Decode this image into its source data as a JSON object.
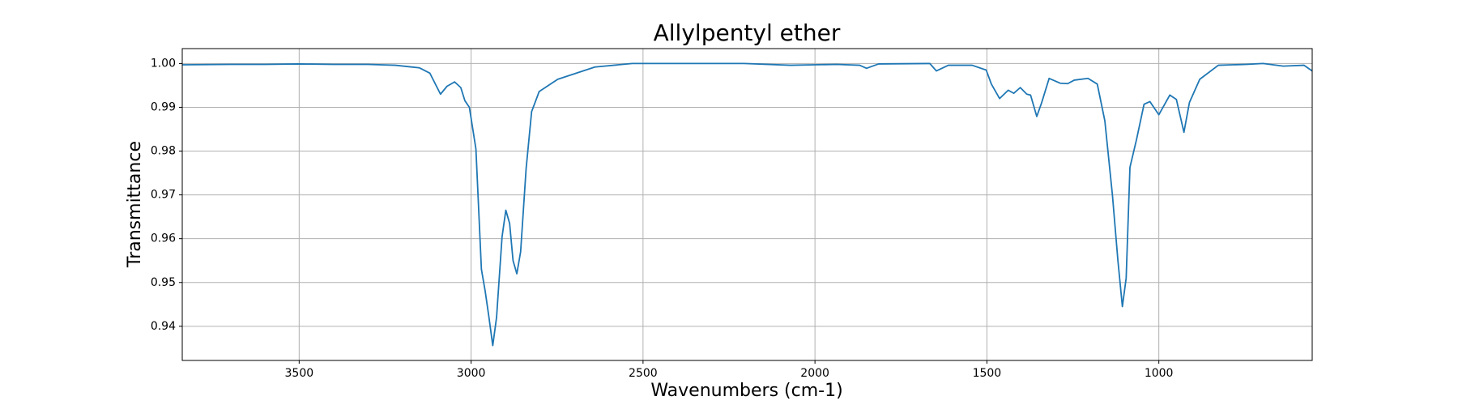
{
  "chart_data": {
    "type": "line",
    "title": "Allylpentyl ether",
    "xlabel": "Wavenumbers (cm-1)",
    "ylabel": "Transmittance",
    "x": [
      3840,
      3700,
      3600,
      3500,
      3400,
      3300,
      3220,
      3150,
      3120,
      3089,
      3070,
      3048,
      3030,
      3018,
      3005,
      2986,
      2970,
      2959,
      2948,
      2937,
      2926,
      2910,
      2899,
      2888,
      2878,
      2867,
      2856,
      2840,
      2824,
      2802,
      2748,
      2640,
      2531,
      2400,
      2207,
      2071,
      1936,
      1870,
      1850,
      1815,
      1666,
      1647,
      1612,
      1543,
      1502,
      1487,
      1463,
      1438,
      1422,
      1403,
      1384,
      1373,
      1355,
      1341,
      1319,
      1287,
      1265,
      1246,
      1206,
      1179,
      1157,
      1135,
      1119,
      1106,
      1095,
      1084,
      1065,
      1043,
      1026,
      1000,
      968,
      949,
      927,
      911,
      881,
      827,
      746,
      697,
      638,
      578,
      554
    ],
    "series": [
      {
        "name": "Allylpentyl ether",
        "color": "#1f77b4",
        "values": [
          0.9997,
          0.9998,
          0.9998,
          0.9999,
          0.9998,
          0.9998,
          0.9996,
          0.999,
          0.9978,
          0.993,
          0.9948,
          0.9958,
          0.9945,
          0.9915,
          0.99,
          0.9805,
          0.953,
          0.948,
          0.942,
          0.9356,
          0.942,
          0.9604,
          0.9665,
          0.9635,
          0.955,
          0.952,
          0.957,
          0.976,
          0.989,
          0.9936,
          0.9964,
          0.9992,
          1.0,
          1.0,
          1.0,
          0.9996,
          0.9998,
          0.9996,
          0.9989,
          0.9999,
          1.0,
          0.9983,
          0.9996,
          0.9996,
          0.9985,
          0.9953,
          0.992,
          0.9939,
          0.9932,
          0.9945,
          0.993,
          0.9928,
          0.9879,
          0.991,
          0.9966,
          0.9955,
          0.9954,
          0.9962,
          0.9966,
          0.9953,
          0.9869,
          0.97,
          0.955,
          0.9445,
          0.951,
          0.9763,
          0.9826,
          0.9907,
          0.9913,
          0.9883,
          0.9928,
          0.9918,
          0.9843,
          0.9911,
          0.9964,
          0.9996,
          0.9998,
          1.0,
          0.9994,
          0.9996,
          0.9983
        ]
      }
    ],
    "xlim": [
      3840,
      554
    ],
    "ylim": [
      0.9322,
      1.0034
    ],
    "xticks": [
      3500,
      3000,
      2500,
      2000,
      1500,
      1000
    ],
    "yticks": [
      0.94,
      0.95,
      0.96,
      0.97,
      0.98,
      0.99,
      {
        "value": 1,
        "label": "1.00"
      }
    ],
    "grid": true
  }
}
